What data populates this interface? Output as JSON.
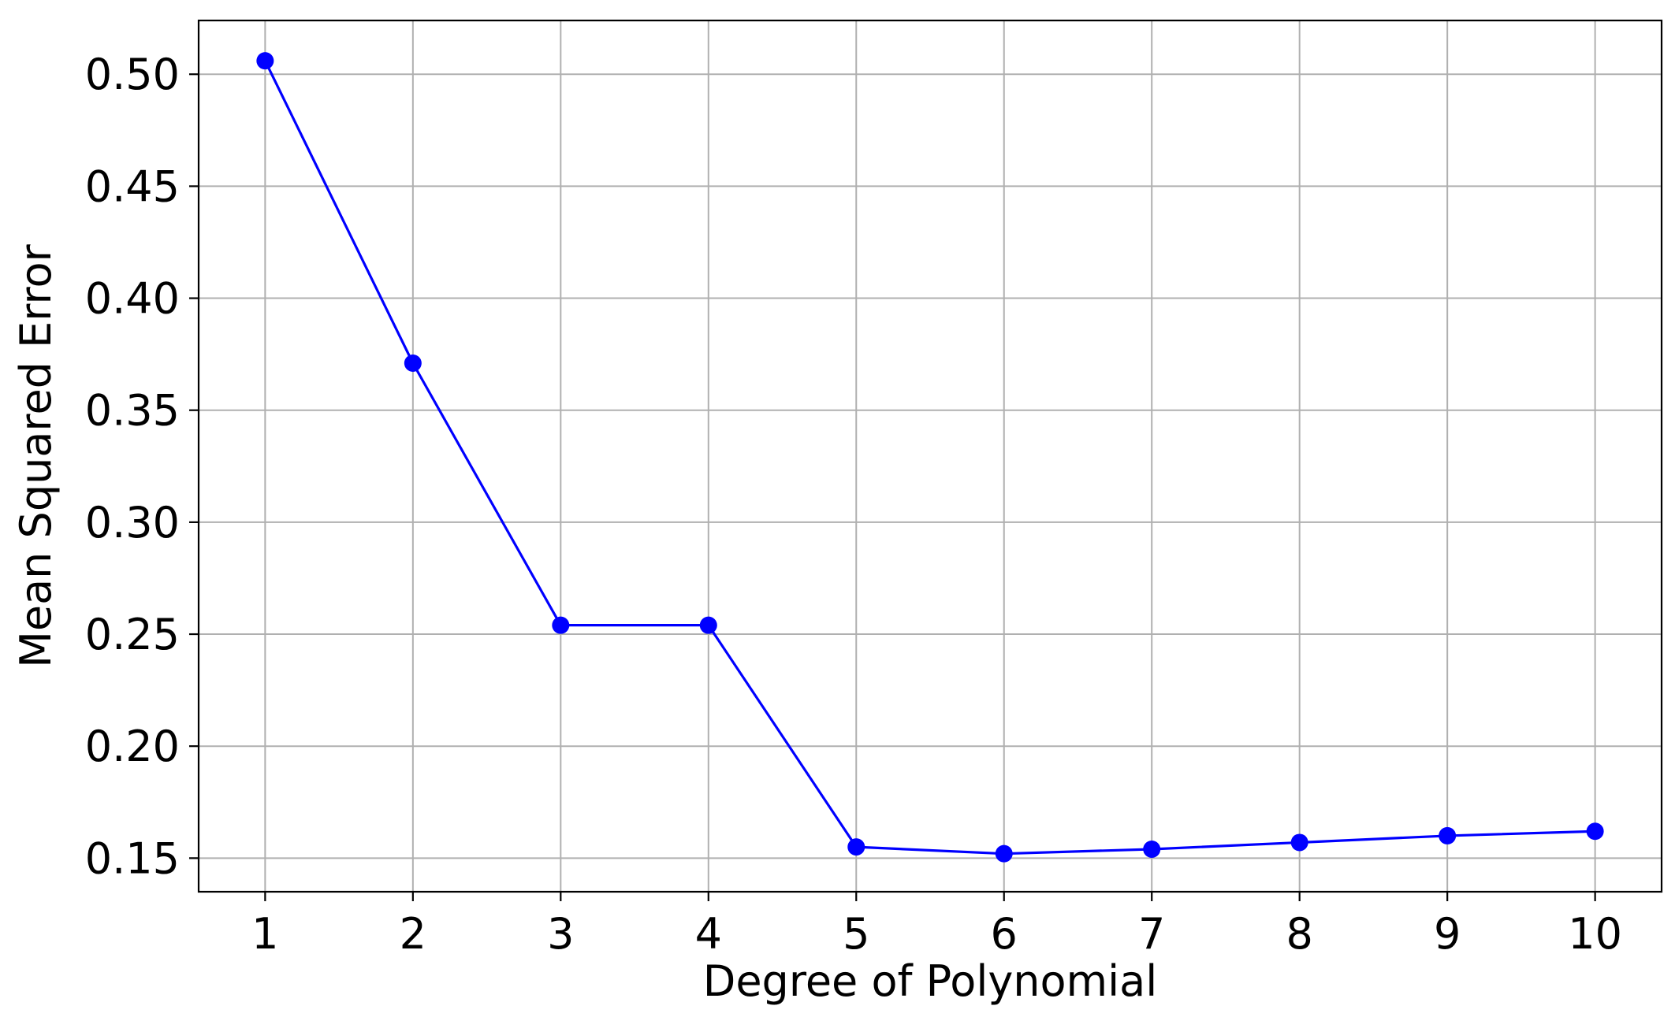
{
  "chart_data": {
    "type": "line",
    "title": "",
    "xlabel": "Degree of Polynomial",
    "ylabel": "Mean Squared Error",
    "x": [
      1,
      2,
      3,
      4,
      5,
      6,
      7,
      8,
      9,
      10
    ],
    "series": [
      {
        "values": [
          0.506,
          0.371,
          0.254,
          0.254,
          0.155,
          0.152,
          0.154,
          0.157,
          0.16,
          0.162
        ],
        "color": "#0000ff",
        "marker": "circle"
      }
    ],
    "xticks": [
      "1",
      "2",
      "3",
      "4",
      "5",
      "6",
      "7",
      "8",
      "9",
      "10"
    ],
    "yticks": [
      "0.15",
      "0.20",
      "0.25",
      "0.30",
      "0.35",
      "0.40",
      "0.45",
      "0.50"
    ],
    "ytick_values": [
      0.15,
      0.2,
      0.25,
      0.3,
      0.35,
      0.4,
      0.45,
      0.5
    ],
    "xlim": [
      0.55,
      10.45
    ],
    "ylim": [
      0.135,
      0.524
    ],
    "grid": true,
    "grid_color": "#b0b0b0",
    "legend": "none"
  }
}
